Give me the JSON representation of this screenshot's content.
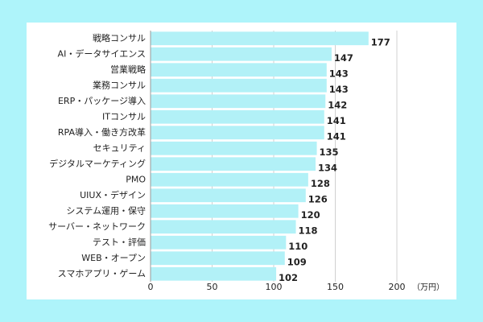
{
  "chart_data": {
    "type": "bar",
    "orientation": "horizontal",
    "categories": [
      "戦略コンサル",
      "AI・データサイエンス",
      "営業戦略",
      "業務コンサル",
      "ERP・パッケージ導入",
      "ITコンサル",
      "RPA導入・働き方改革",
      "セキュリティ",
      "デジタルマーケティング",
      "PMO",
      "UIUX・デザイン",
      "システム運用・保守",
      "サーバー・ネットワーク",
      "テスト・評価",
      "WEB・オープン",
      "スマホアプリ・ゲーム"
    ],
    "values": [
      177,
      147,
      143,
      143,
      142,
      141,
      141,
      135,
      134,
      128,
      126,
      120,
      118,
      110,
      109,
      102
    ],
    "color": "#b2f1f7",
    "xlim": [
      0,
      200
    ],
    "xticks": [
      0,
      50,
      100,
      150,
      200
    ],
    "xlabel": "（万円）",
    "grid": true
  }
}
